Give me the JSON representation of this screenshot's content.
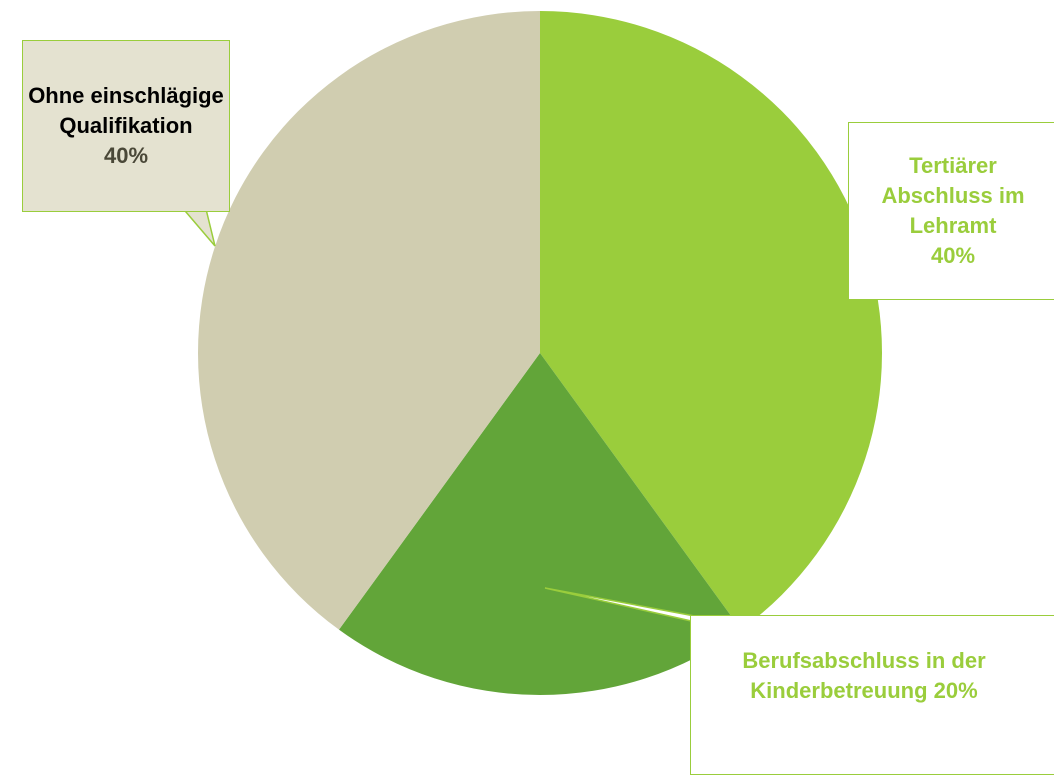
{
  "chart_data": {
    "type": "pie",
    "categories": [
      "Tertiärer Abschluss im Lehramt",
      "Berufsabschluss in der Kinderbetreuung",
      "Ohne einschlägige Qualifikation"
    ],
    "values": [
      40,
      20,
      40
    ],
    "value_labels": [
      "40%",
      "20%",
      "40%"
    ],
    "colors": [
      "#9acd3c",
      "#62a539",
      "#d0cdb0"
    ]
  }
}
